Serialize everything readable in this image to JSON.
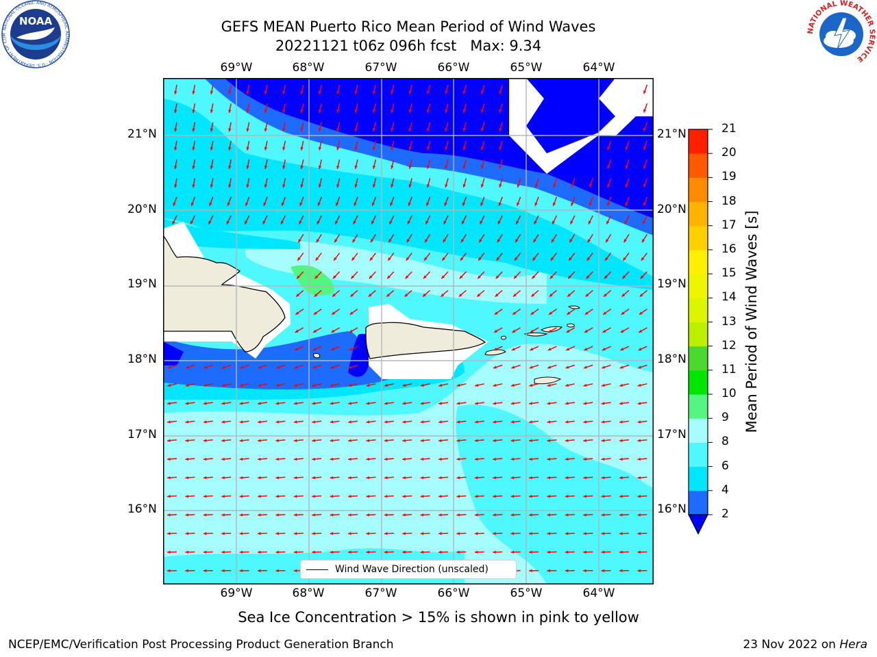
{
  "title": {
    "line1": "GEFS MEAN Puerto Rico Mean Period of Wind Waves",
    "line2": "20221121 t06z 096h fcst   Max: 9.34"
  },
  "map": {
    "lon_labels": [
      "69°W",
      "68°W",
      "67°W",
      "66°W",
      "65°W",
      "64°W"
    ],
    "lat_labels": [
      "21°N",
      "20°N",
      "19°N",
      "18°N",
      "17°N",
      "16°N"
    ],
    "lon_range": [
      -70.0,
      -63.25
    ],
    "lat_range": [
      15.0,
      21.75
    ],
    "legend_label": "Wind Wave Direction (unscaled)",
    "arrow_color": "#ff0000",
    "land_color": "#efecdc",
    "arrow_pattern": "north of 20.5°N arrows point south; 18–20.5°N arrows point southwest; south of 17.5°N arrows point west"
  },
  "colorbar": {
    "title": "Mean Period of Wind Waves [s]",
    "levels": [
      "2",
      "4",
      "6",
      "8",
      "9",
      "10",
      "11",
      "12",
      "13",
      "14",
      "15",
      "16",
      "17",
      "18",
      "19",
      "20",
      "21"
    ],
    "colors": [
      "#1e6cff",
      "#00e6ff",
      "#4ff7ff",
      "#a6fdff",
      "#55f582",
      "#00e600",
      "#4dd830",
      "#bcf000",
      "#dcf500",
      "#eef500",
      "#ffef00",
      "#ffd000",
      "#ffb300",
      "#ff8c00",
      "#ff5a00",
      "#ff2000"
    ],
    "under_color": "#0000ff"
  },
  "data_regions": [
    {
      "name": "northeast deep blue (period < 2 s)",
      "color": "#0000ff"
    },
    {
      "name": "north-central blue (2–4 s)",
      "color": "#1e6cff"
    },
    {
      "name": "central cyan band (4–6 s)",
      "color": "#00e6ff"
    },
    {
      "name": "southern light cyan (6–8 s)",
      "color": "#4ff7ff"
    },
    {
      "name": "pale cyan patches (8–9 s)",
      "color": "#a6fdff"
    },
    {
      "name": "green patch NW of Puerto Rico (9–10 s, max 9.34)",
      "color": "#55f582"
    }
  ],
  "sea_ice_note": "Sea Ice Concentration > 15% is shown in pink to yellow",
  "footer": {
    "left": "NCEP/EMC/Verification Post Processing Product Generation Branch",
    "right_prefix": "23 Nov 2022 on ",
    "right_italic": "Hera"
  },
  "logos": {
    "noaa_text": "NOAA",
    "noaa_ring": "NATIONAL OCEANIC AND ATMOSPHERIC ADMINISTRATION · U.S. DEPARTMENT OF COMMERCE",
    "nws_ring": "NATIONAL WEATHER SERVICE"
  }
}
